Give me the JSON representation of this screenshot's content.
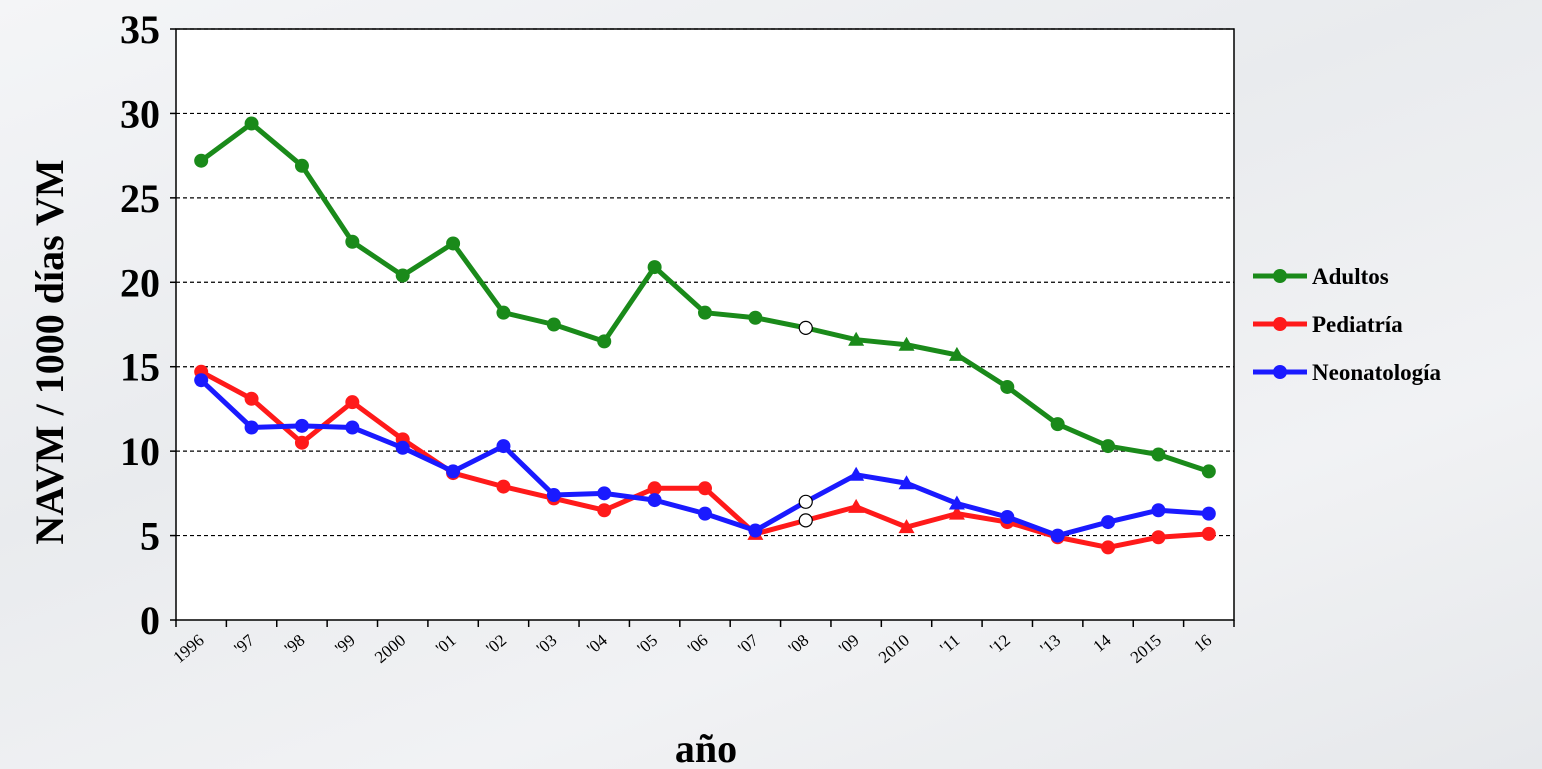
{
  "chart_data": {
    "type": "line",
    "xlabel": "año",
    "ylabel": "NAVM / 1000 días VM",
    "ylim": [
      0,
      35
    ],
    "yticks": [
      "0",
      "5",
      "10",
      "15",
      "20",
      "25",
      "30",
      "35"
    ],
    "categories": [
      "1996",
      "'97",
      "'98",
      "'99",
      "2000",
      "'01",
      "'02",
      "'03",
      "'04",
      "'05",
      "'06",
      "'07",
      "'08",
      "'09",
      "2010",
      "'11",
      "'12",
      "'13",
      "14",
      "2015",
      "16"
    ],
    "grid": "horizontal dashed",
    "legend_position": "right",
    "series": [
      {
        "name": "Adultos",
        "color": "#1a8a1a",
        "values": [
          27.2,
          29.4,
          26.9,
          22.4,
          20.4,
          22.3,
          18.2,
          17.5,
          16.5,
          20.9,
          18.2,
          17.9,
          17.3,
          16.6,
          16.3,
          15.7,
          13.8,
          11.6,
          10.3,
          9.8,
          8.8
        ],
        "markers": [
          "circle",
          "circle",
          "circle",
          "circle",
          "circle",
          "circle",
          "circle",
          "circle",
          "circle",
          "circle",
          "circle",
          "circle",
          "open-circle",
          "triangle",
          "triangle",
          "triangle",
          "circle",
          "circle",
          "circle",
          "circle",
          "circle"
        ]
      },
      {
        "name": "Pediatría",
        "color": "#ff1a1a",
        "values": [
          14.7,
          13.1,
          10.5,
          12.9,
          10.7,
          8.7,
          7.9,
          7.2,
          6.5,
          7.8,
          7.8,
          5.1,
          5.9,
          6.7,
          5.5,
          6.3,
          5.8,
          4.9,
          4.3,
          4.9,
          5.1
        ],
        "markers": [
          "circle",
          "circle",
          "circle",
          "circle",
          "circle",
          "circle",
          "circle",
          "circle",
          "circle",
          "circle",
          "circle",
          "triangle",
          "open-circle",
          "triangle",
          "triangle",
          "triangle",
          "circle",
          "circle",
          "circle",
          "circle",
          "circle"
        ]
      },
      {
        "name": "Neonatología",
        "color": "#1a1aff",
        "values": [
          14.2,
          11.4,
          11.5,
          11.4,
          10.2,
          8.8,
          10.3,
          7.4,
          7.5,
          7.1,
          6.3,
          5.3,
          7.0,
          8.6,
          8.1,
          6.9,
          6.1,
          5.0,
          5.8,
          6.5,
          6.3
        ],
        "markers": [
          "circle",
          "circle",
          "circle",
          "circle",
          "circle",
          "circle",
          "circle",
          "circle",
          "circle",
          "circle",
          "circle",
          "circle",
          "open-circle",
          "triangle",
          "triangle",
          "triangle",
          "circle",
          "circle",
          "circle",
          "circle",
          "circle"
        ]
      }
    ]
  }
}
